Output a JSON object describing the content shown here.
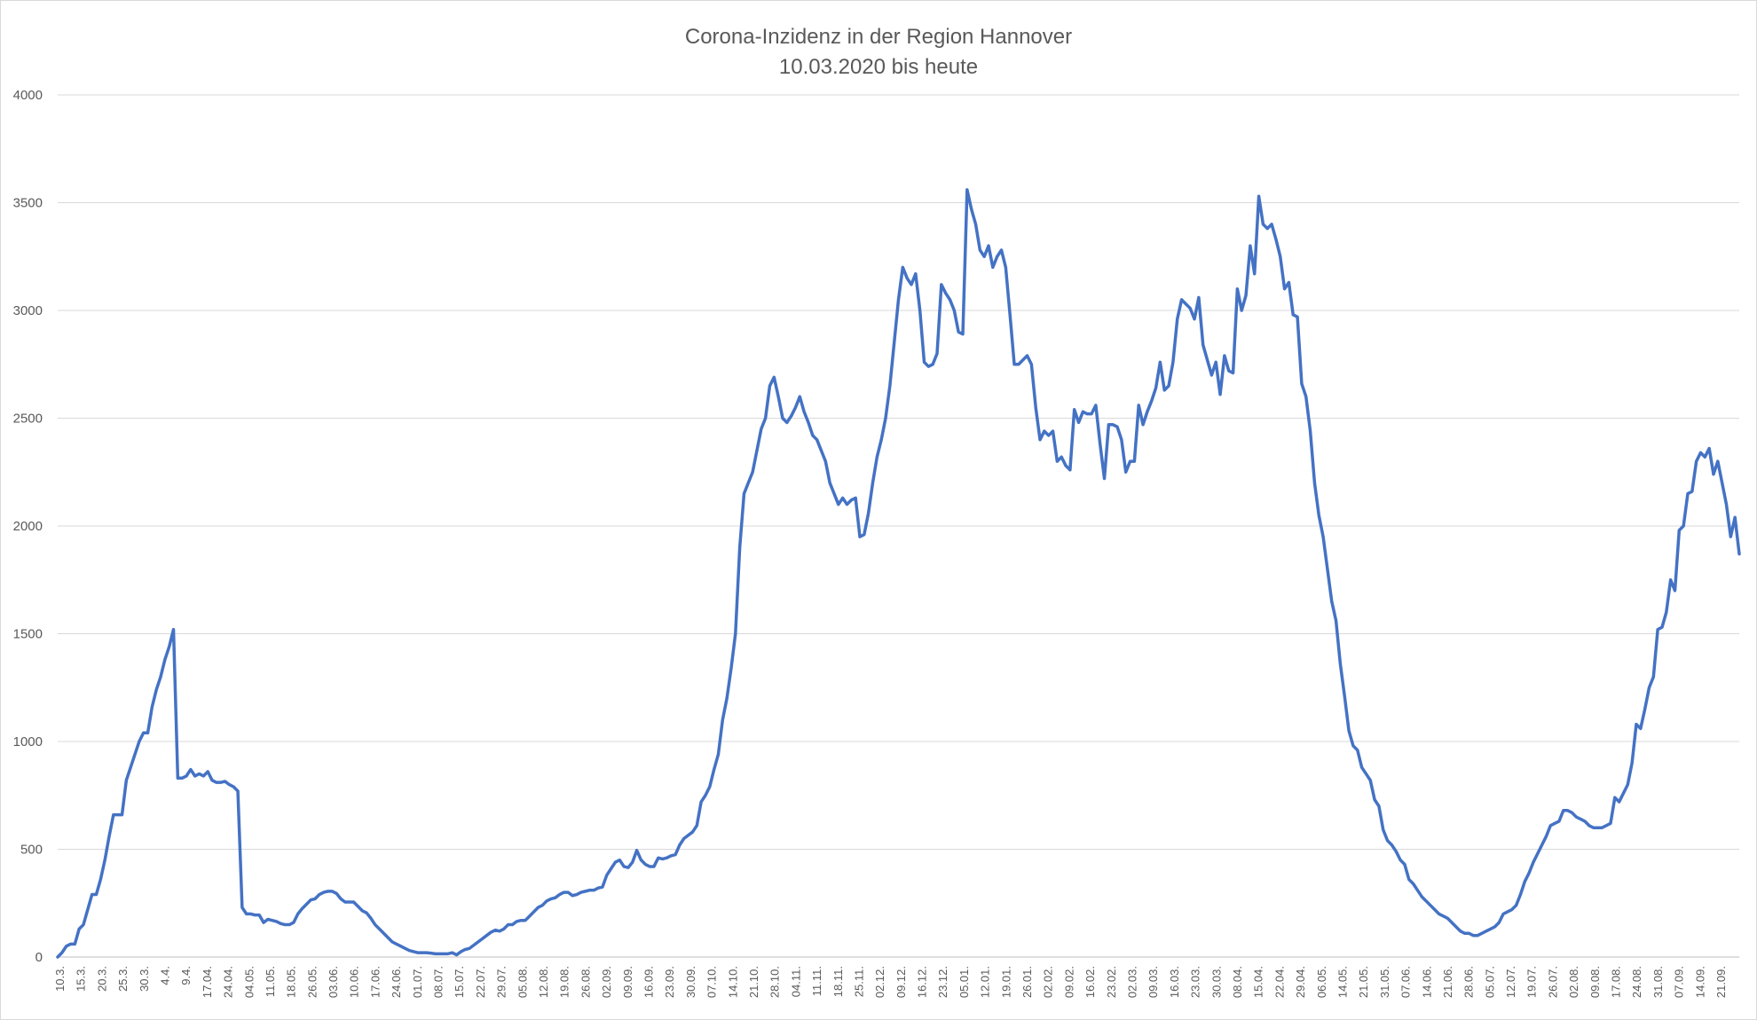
{
  "chart_data": {
    "type": "line",
    "title": "Corona-Inzidenz in der Region Hannover",
    "subtitle": "10.03.2020 bis heute",
    "xlabel": "",
    "ylabel": "",
    "ylim": [
      0,
      4000
    ],
    "yticks": [
      0,
      500,
      1000,
      1500,
      2000,
      2500,
      3000,
      3500,
      4000
    ],
    "grid": "horizontal",
    "line_color": "#4472c4",
    "x_tick_labels": [
      "10.3.",
      "15.3.",
      "20.3.",
      "25.3.",
      "30.3.",
      "4.4.",
      "9.4.",
      "17.04.",
      "24.04.",
      "04.05.",
      "11.05.",
      "18.05.",
      "26.05.",
      "03.06.",
      "10.06.",
      "17.06.",
      "24.06.",
      "01.07.",
      "08.07.",
      "15.07.",
      "22.07.",
      "29.07.",
      "05.08.",
      "12.08.",
      "19.08.",
      "26.08.",
      "02.09.",
      "09.09.",
      "16.09.",
      "23.09.",
      "30.09.",
      "07.10.",
      "14.10.",
      "21.10.",
      "28.10.",
      "04.11.",
      "11.11.",
      "18.11.",
      "25.11.",
      "02.12.",
      "09.12.",
      "16.12.",
      "23.12.",
      "05.01.",
      "12.01.",
      "19.01.",
      "26.01.",
      "02.02.",
      "09.02.",
      "16.02.",
      "23.02.",
      "02.03.",
      "09.03.",
      "16.03.",
      "23.03.",
      "30.03.",
      "08.04.",
      "15.04.",
      "22.04.",
      "29.04.",
      "06.05.",
      "14.05.",
      "21.05.",
      "31.05.",
      "07.06.",
      "14.06.",
      "21.06.",
      "28.06.",
      "05.07.",
      "12.07.",
      "19.07.",
      "26.07.",
      "02.08.",
      "09.08.",
      "17.08.",
      "24.08.",
      "31.08.",
      "07.09.",
      "14.09.",
      "21.09."
    ],
    "series": [
      {
        "values": [
          0,
          20,
          50,
          60,
          60,
          130,
          150,
          220,
          290,
          290,
          360,
          450,
          560,
          660,
          660,
          660,
          820,
          880,
          940,
          1000,
          1040,
          1040,
          1160,
          1240,
          1300,
          1380,
          1440,
          1520,
          830,
          830,
          840,
          870,
          840,
          850,
          840,
          860,
          820,
          810,
          810,
          815,
          800,
          790,
          770,
          230,
          200,
          200,
          195,
          195,
          160,
          175,
          170,
          165,
          155,
          150,
          150,
          160,
          200,
          225,
          245,
          265,
          270,
          290,
          300,
          305,
          305,
          295,
          270,
          255,
          255,
          255,
          235,
          215,
          205,
          180,
          150,
          130,
          110,
          90,
          70,
          60,
          50,
          40,
          30,
          25,
          20,
          20,
          20,
          18,
          15,
          15,
          15,
          15,
          20,
          10,
          25,
          35,
          40,
          55,
          70,
          85,
          100,
          115,
          125,
          120,
          130,
          150,
          150,
          165,
          170,
          170,
          190,
          210,
          230,
          240,
          260,
          270,
          275,
          290,
          300,
          300,
          285,
          290,
          300,
          305,
          310,
          310,
          320,
          325,
          380,
          410,
          440,
          450,
          420,
          415,
          440,
          495,
          450,
          430,
          420,
          420,
          460,
          455,
          460,
          470,
          475,
          520,
          550,
          565,
          580,
          610,
          720,
          750,
          790,
          870,
          940,
          1100,
          1200,
          1340,
          1500,
          1900,
          2150,
          2200,
          2250,
          2350,
          2450,
          2500,
          2650,
          2690,
          2600,
          2500,
          2480,
          2510,
          2550,
          2600,
          2530,
          2480,
          2420,
          2400,
          2350,
          2300,
          2200,
          2150,
          2100,
          2130,
          2100,
          2120,
          2130,
          1950,
          1960,
          2060,
          2200,
          2320,
          2400,
          2500,
          2650,
          2850,
          3050,
          3200,
          3150,
          3120,
          3170,
          3000,
          2760,
          2740,
          2750,
          2800,
          3120,
          3080,
          3050,
          3000,
          2900,
          2890,
          3560,
          3470,
          3400,
          3280,
          3250,
          3300,
          3200,
          3250,
          3280,
          3200,
          2980,
          2750,
          2750,
          2770,
          2790,
          2750,
          2550,
          2400,
          2440,
          2420,
          2440,
          2300,
          2320,
          2280,
          2260,
          2540,
          2480,
          2530,
          2520,
          2520,
          2560,
          2380,
          2220,
          2470,
          2470,
          2460,
          2400,
          2250,
          2300,
          2300,
          2560,
          2470,
          2530,
          2580,
          2640,
          2760,
          2630,
          2650,
          2760,
          2960,
          3050,
          3030,
          3010,
          2960,
          3060,
          2840,
          2770,
          2700,
          2760,
          2610,
          2790,
          2720,
          2710,
          3100,
          3000,
          3070,
          3300,
          3170,
          3530,
          3400,
          3380,
          3400,
          3330,
          3250,
          3100,
          3130,
          2980,
          2970,
          2660,
          2600,
          2440,
          2200,
          2050,
          1950,
          1800,
          1650,
          1560,
          1360,
          1210,
          1050,
          980,
          960,
          880,
          850,
          820,
          730,
          700,
          590,
          540,
          520,
          490,
          450,
          430,
          360,
          340,
          310,
          280,
          260,
          240,
          220,
          200,
          190,
          180,
          160,
          140,
          120,
          110,
          110,
          100,
          100,
          110,
          120,
          130,
          140,
          160,
          200,
          210,
          220,
          240,
          290,
          350,
          390,
          440,
          480,
          520,
          560,
          610,
          620,
          630,
          680,
          680,
          670,
          650,
          640,
          630,
          610,
          600,
          600,
          600,
          610,
          620,
          740,
          720,
          760,
          800,
          900,
          1080,
          1060,
          1150,
          1250,
          1300,
          1520,
          1530,
          1600,
          1750,
          1700,
          1980,
          2000,
          2150,
          2160,
          2300,
          2340,
          2320,
          2360,
          2240,
          2300,
          2200,
          2100,
          1950,
          2040,
          1870
        ]
      }
    ]
  }
}
